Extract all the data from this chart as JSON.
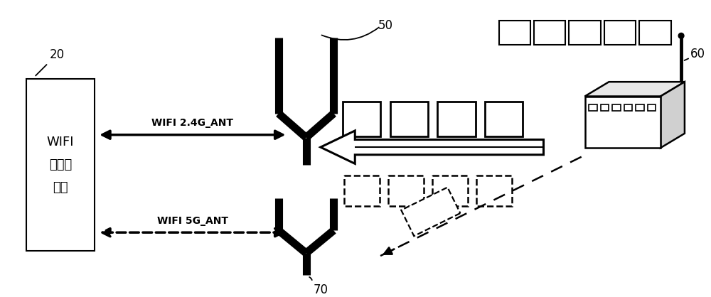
{
  "bg_color": "#ffffff",
  "line_color": "#000000",
  "label_20": "20",
  "label_50": "50",
  "label_60": "60",
  "label_70": "70",
  "text_wifi_chip": "WIFI\n收发机\n芯片",
  "text_24g": "WIFI 2.4G_ANT",
  "text_5g": "WIFI 5G_ANT",
  "figsize": [
    10.0,
    4.18
  ],
  "dpi": 100
}
